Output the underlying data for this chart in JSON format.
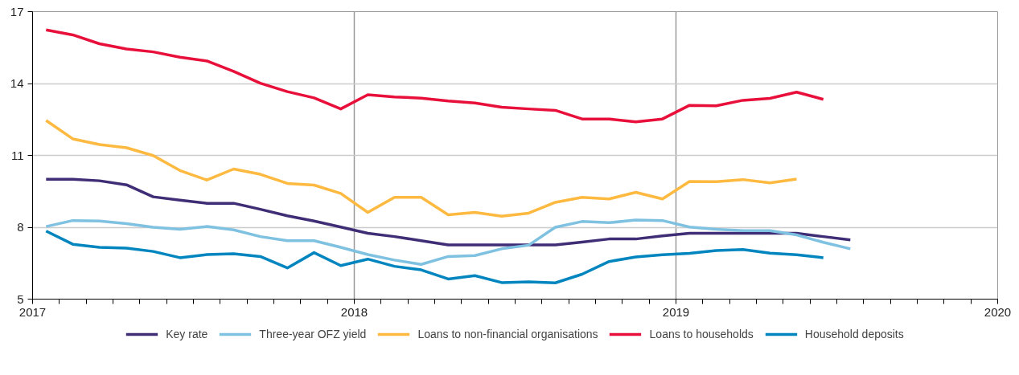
{
  "chart_data": {
    "type": "line",
    "x": [
      2017.042,
      2017.125,
      2017.208,
      2017.292,
      2017.375,
      2017.458,
      2017.542,
      2017.625,
      2017.708,
      2017.792,
      2017.875,
      2017.958,
      2018.042,
      2018.125,
      2018.208,
      2018.292,
      2018.375,
      2018.458,
      2018.542,
      2018.625,
      2018.708,
      2018.792,
      2018.875,
      2018.958,
      2019.042,
      2019.125,
      2019.208,
      2019.292,
      2019.375,
      2019.458,
      2019.542
    ],
    "series": [
      {
        "name": "Key rate",
        "color": "#3f2d76",
        "values": [
          10.0,
          10.0,
          9.94,
          9.77,
          9.27,
          9.13,
          9.0,
          9.0,
          8.75,
          8.48,
          8.26,
          8.01,
          7.75,
          7.61,
          7.44,
          7.26,
          7.26,
          7.26,
          7.26,
          7.26,
          7.38,
          7.51,
          7.51,
          7.64,
          7.75,
          7.75,
          7.75,
          7.75,
          7.75,
          7.61,
          7.47
        ]
      },
      {
        "name": "Three-year OFZ yield",
        "color": "#7fc1e0",
        "values": [
          8.03,
          8.28,
          8.26,
          8.15,
          8.0,
          7.92,
          8.03,
          7.89,
          7.61,
          7.44,
          7.44,
          7.16,
          6.86,
          6.63,
          6.45,
          6.78,
          6.82,
          7.1,
          7.25,
          8.0,
          8.24,
          8.19,
          8.3,
          8.28,
          8.01,
          7.92,
          7.86,
          7.86,
          7.68,
          7.37,
          7.1
        ]
      },
      {
        "name": "Loans to non-financial organisations",
        "color": "#fdb940",
        "values": [
          12.46,
          11.69,
          11.45,
          11.32,
          10.99,
          10.37,
          9.97,
          10.43,
          10.21,
          9.83,
          9.76,
          9.41,
          8.62,
          9.25,
          9.25,
          8.52,
          8.62,
          8.46,
          8.59,
          9.04,
          9.25,
          9.18,
          9.46,
          9.18,
          9.91,
          9.9,
          9.99,
          9.85,
          10.01,
          null,
          null
        ]
      },
      {
        "name": "Loans to households",
        "color": "#e8103b",
        "values": [
          16.24,
          16.03,
          15.66,
          15.44,
          15.32,
          15.1,
          14.94,
          14.51,
          14.01,
          13.66,
          13.4,
          12.94,
          13.53,
          13.44,
          13.39,
          13.27,
          13.19,
          13.01,
          12.94,
          12.88,
          12.52,
          12.52,
          12.4,
          12.52,
          13.09,
          13.07,
          13.3,
          13.38,
          13.64,
          13.34,
          null
        ]
      },
      {
        "name": "Household deposits",
        "color": "#0085bf",
        "values": [
          7.84,
          7.29,
          7.16,
          7.13,
          6.99,
          6.73,
          6.86,
          6.89,
          6.78,
          6.3,
          6.94,
          6.4,
          6.67,
          6.37,
          6.22,
          5.84,
          5.98,
          5.69,
          5.72,
          5.68,
          6.04,
          6.57,
          6.76,
          6.85,
          6.91,
          7.03,
          7.07,
          6.92,
          6.85,
          6.73,
          null
        ]
      }
    ],
    "xlim": [
      2017,
      2020
    ],
    "xticks": [
      2017,
      {
        "value": 2017.083,
        "label": null
      },
      {
        "value": 2017.167,
        "label": null
      },
      {
        "value": 2017.25,
        "label": null
      },
      {
        "value": 2017.333,
        "label": null
      },
      {
        "value": 2017.417,
        "label": null
      },
      {
        "value": 2017.5,
        "label": null
      },
      {
        "value": 2017.583,
        "label": null
      },
      {
        "value": 2017.667,
        "label": null
      },
      {
        "value": 2017.75,
        "label": null
      },
      {
        "value": 2017.833,
        "label": null
      },
      {
        "value": 2017.917,
        "label": null
      },
      2018,
      {
        "value": 2018.083,
        "label": null
      },
      {
        "value": 2018.167,
        "label": null
      },
      {
        "value": 2018.25,
        "label": null
      },
      {
        "value": 2018.333,
        "label": null
      },
      {
        "value": 2018.417,
        "label": null
      },
      {
        "value": 2018.5,
        "label": null
      },
      {
        "value": 2018.583,
        "label": null
      },
      {
        "value": 2018.667,
        "label": null
      },
      {
        "value": 2018.75,
        "label": null
      },
      {
        "value": 2018.833,
        "label": null
      },
      {
        "value": 2018.917,
        "label": null
      },
      2019,
      {
        "value": 2019.083,
        "label": null
      },
      {
        "value": 2019.167,
        "label": null
      },
      {
        "value": 2019.25,
        "label": null
      },
      {
        "value": 2019.333,
        "label": null
      },
      {
        "value": 2019.417,
        "label": null
      },
      {
        "value": 2019.5,
        "label": null
      },
      {
        "value": 2019.583,
        "label": null
      },
      {
        "value": 2019.667,
        "label": null
      },
      {
        "value": 2019.75,
        "label": null
      },
      {
        "value": 2019.833,
        "label": null
      },
      {
        "value": 2019.917,
        "label": null
      },
      2020
    ],
    "ylim": [
      5,
      17
    ],
    "yticks": [
      5,
      8,
      11,
      14,
      17
    ],
    "grid": true,
    "legend": "bottom",
    "marker": "none",
    "line_style": "solid"
  }
}
